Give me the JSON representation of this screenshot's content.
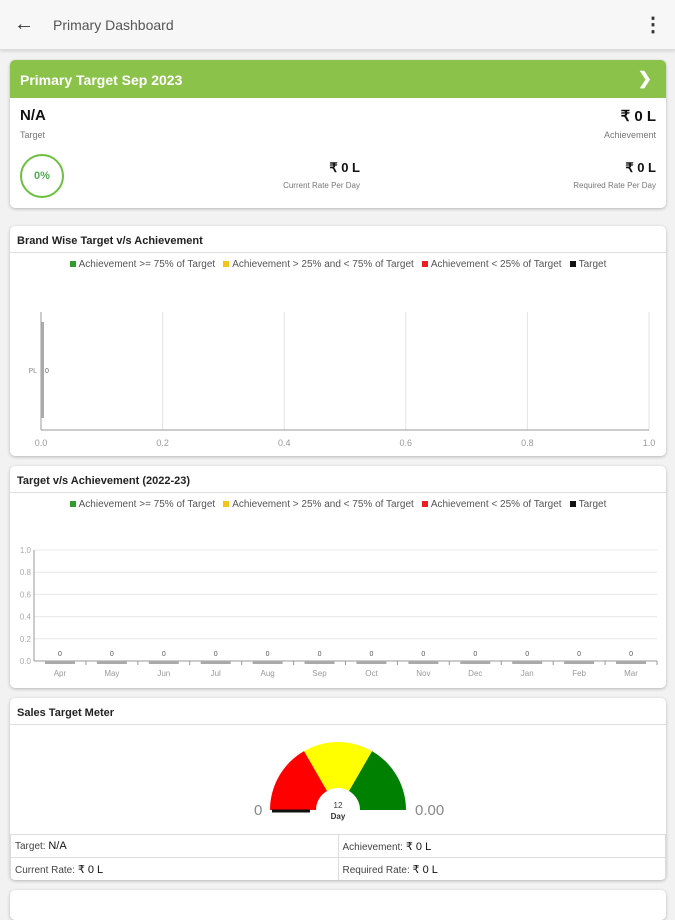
{
  "header": {
    "title": "Primary Dashboard",
    "back_icon": "arrow-left-icon",
    "menu_icon": "more-vert-icon"
  },
  "summary": {
    "title": "Primary Target Sep 2023",
    "target_value": "N/A",
    "target_label": "Target",
    "achievement_value": "₹ 0 L",
    "achievement_label": "Achievement",
    "percent": "0%",
    "current_rate_value": "₹ 0 L",
    "current_rate_label": "Current Rate Per Day",
    "required_rate_value": "₹ 0 L",
    "required_rate_label": "Required Rate Per Day"
  },
  "legend": [
    {
      "label": "Achievement >= 75% of Target",
      "color": "#2e9e2e"
    },
    {
      "label": "Achievement > 25% and < 75% of Target",
      "color": "#f5c518"
    },
    {
      "label": "Achievement < 25% of Target",
      "color": "#e82020"
    },
    {
      "label": "Target",
      "color": "#111111"
    }
  ],
  "chart_data": [
    {
      "type": "bar",
      "orientation": "horizontal",
      "title": "Brand Wise Target v/s Achievement",
      "categories": [
        "PL"
      ],
      "values": [
        0
      ],
      "data_labels": [
        "0"
      ],
      "xlim": [
        0,
        1
      ],
      "xticks": [
        "0.0",
        "0.2",
        "0.4",
        "0.6",
        "0.8",
        "1.0"
      ],
      "grid": true
    },
    {
      "type": "bar",
      "title": "Target v/s Achievement (2022-23)",
      "categories": [
        "Apr",
        "May",
        "Jun",
        "Jul",
        "Aug",
        "Sep",
        "Oct",
        "Nov",
        "Dec",
        "Jan",
        "Feb",
        "Mar"
      ],
      "values": [
        0,
        0,
        0,
        0,
        0,
        0,
        0,
        0,
        0,
        0,
        0,
        0
      ],
      "data_labels": [
        "0",
        "0",
        "0",
        "0",
        "0",
        "0",
        "0",
        "0",
        "0",
        "0",
        "0",
        "0"
      ],
      "ylim": [
        0,
        1
      ],
      "yticks": [
        "0.0",
        "0.2",
        "0.4",
        "0.6",
        "0.8",
        "1.0"
      ],
      "grid": true
    }
  ],
  "meter": {
    "title": "Sales Target Meter",
    "min_label": "0",
    "max_label": "0.00",
    "center_value": "12",
    "center_unit": "Day",
    "value_fraction": 0,
    "colors": [
      "#ff0000",
      "#ffff00",
      "#008000"
    ],
    "target": "Target: ",
    "target_value": "N/A",
    "achievement": "Achievement: ",
    "achievement_value": "₹ 0 L",
    "current_rate": "Current Rate: ",
    "current_rate_value": "₹ 0 L",
    "required_rate": "Required Rate: ",
    "required_rate_value": "₹ 0 L"
  }
}
